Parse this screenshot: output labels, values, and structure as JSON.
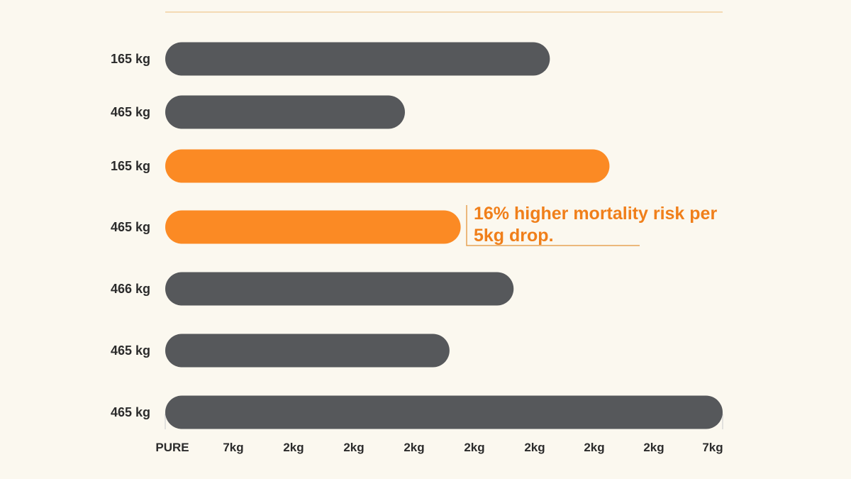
{
  "chart_data": {
    "type": "bar",
    "orientation": "horizontal",
    "categories": [
      "165 kg",
      "465 kg",
      "165 kg",
      "465 kg",
      "466 kg",
      "465 kg",
      "465 kg"
    ],
    "values": [
      6.9,
      4.3,
      7.97,
      5.3,
      6.25,
      5.1,
      10
    ],
    "xlim": [
      0,
      10
    ],
    "x_tick_labels": [
      "PURE",
      "7kg",
      "2kg",
      "2kg",
      "2kg",
      "2kg",
      "2kg",
      "2kg",
      "2kg",
      "7kg"
    ],
    "highlighted": [
      2,
      3
    ],
    "annotation": {
      "lines": [
        "16% higher mortality risk per",
        "5kg drop."
      ],
      "target_index": 3
    },
    "grid": false,
    "legend": "none"
  },
  "colors": {
    "background": "#fbf8ef",
    "bar_default": "#56585b",
    "bar_highlight": "#fb8a24",
    "annotation_text": "#f07f1a",
    "annotation_line": "#e8a255",
    "top_rule": "#f2cfa0",
    "axis_frame": "#d9d9d9",
    "label_text": "#2b2b2b"
  }
}
